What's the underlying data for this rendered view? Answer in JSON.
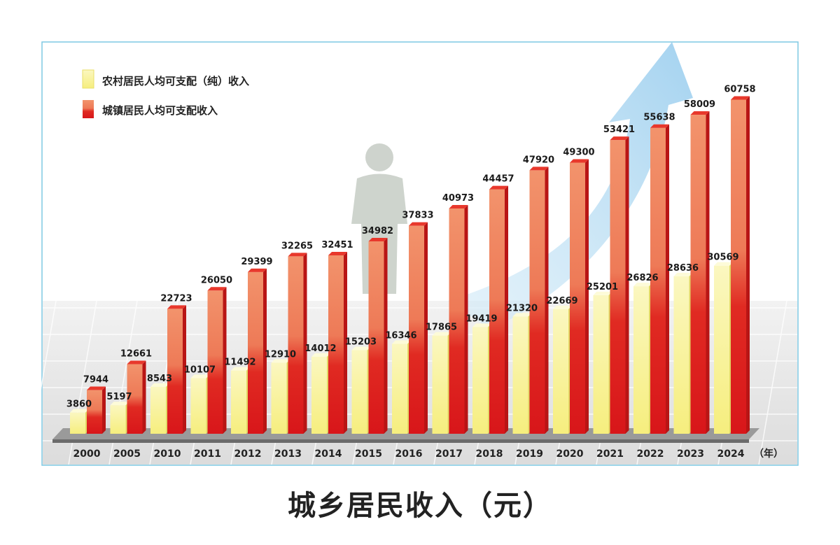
{
  "chart_data": {
    "type": "bar",
    "title": "城乡居民收入（元）",
    "unit_label": "（年）",
    "categories": [
      "2000",
      "2005",
      "2010",
      "2011",
      "2012",
      "2013",
      "2014",
      "2015",
      "2016",
      "2017",
      "2018",
      "2019",
      "2020",
      "2021",
      "2022",
      "2023",
      "2024"
    ],
    "series": [
      {
        "name": "农村居民人均可支配（纯）收入",
        "color": "#f7f08a",
        "values": [
          3860,
          5197,
          8543,
          10107,
          11492,
          12910,
          14012,
          15203,
          16346,
          17865,
          19419,
          21320,
          22669,
          25201,
          26826,
          28636,
          30569
        ]
      },
      {
        "name": "城镇居民人均可支配收入",
        "color": "#e33a2a",
        "values": [
          7944,
          12661,
          22723,
          26050,
          29399,
          32265,
          32451,
          34982,
          37833,
          40973,
          44457,
          47920,
          49300,
          53421,
          55638,
          58009,
          60758
        ]
      }
    ],
    "ylim": [
      0,
      62000
    ],
    "legend_position": "top-left"
  }
}
